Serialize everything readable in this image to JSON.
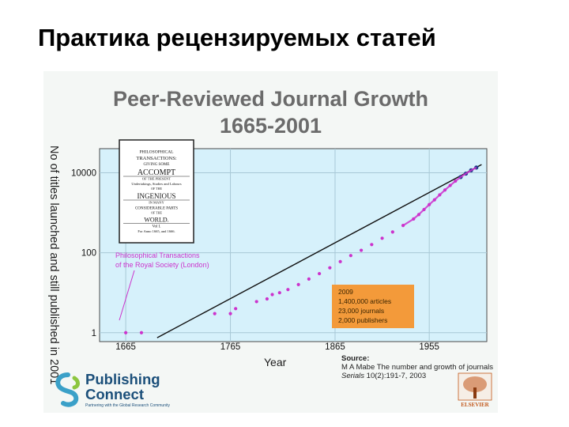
{
  "slide": {
    "title": "Практика рецензируемых статей"
  },
  "chart_data": {
    "type": "scatter",
    "title": "Peer-Reviewed Journal Growth",
    "subtitle": "1665-2001",
    "xlabel": "Year",
    "ylabel": "No of titles launched and still published in 2001",
    "yscale": "log",
    "xlim": [
      1640,
      2010
    ],
    "ylim": [
      0.6,
      40000
    ],
    "x_ticks": [
      {
        "value": 1665,
        "label": "1665"
      },
      {
        "value": 1765,
        "label": "1765"
      },
      {
        "value": 1865,
        "label": "1865"
      },
      {
        "value": 1955,
        "label": "1955"
      }
    ],
    "y_ticks": [
      {
        "value": 1,
        "label": "1"
      },
      {
        "value": 100,
        "label": "100"
      },
      {
        "value": 10000,
        "label": "10000"
      }
    ],
    "grid": true,
    "colors": {
      "plot_bg": "#d6f1fb",
      "grid": "#a8c8d6",
      "points": "#cc33cc",
      "trend": "#111111",
      "recent": "#1f3a8a"
    },
    "series": [
      {
        "points": [
          [
            1665,
            1
          ],
          [
            1680,
            1
          ],
          [
            1750,
            3
          ],
          [
            1765,
            3
          ],
          [
            1770,
            4
          ],
          [
            1790,
            6
          ],
          [
            1800,
            7
          ],
          [
            1805,
            9
          ],
          [
            1812,
            10
          ],
          [
            1820,
            12
          ],
          [
            1830,
            16
          ],
          [
            1840,
            22
          ],
          [
            1850,
            30
          ],
          [
            1860,
            42
          ],
          [
            1870,
            60
          ],
          [
            1880,
            85
          ],
          [
            1890,
            115
          ],
          [
            1900,
            160
          ],
          [
            1910,
            230
          ],
          [
            1920,
            330
          ],
          [
            1930,
            480
          ],
          [
            1940,
            700
          ],
          [
            1945,
            900
          ],
          [
            1950,
            1200
          ],
          [
            1955,
            1600
          ],
          [
            1960,
            2100
          ],
          [
            1965,
            2800
          ],
          [
            1970,
            3700
          ],
          [
            1975,
            4800
          ],
          [
            1980,
            6200
          ],
          [
            1985,
            7800
          ],
          [
            1990,
            9500
          ],
          [
            1995,
            11500
          ],
          [
            2000,
            13500
          ]
        ]
      }
    ],
    "trend_line": {
      "x": [
        1695,
        2005
      ],
      "y": [
        0.75,
        16000
      ]
    },
    "annotations": [
      {
        "text": "Philosophical Transactions of the Royal Society (London)"
      }
    ],
    "inset_title_lines": [
      "PHILOSOPHICAL",
      "TRANSACTIONS:",
      "GIVING SOME",
      "ACCOMPT",
      "OF THE PRESENT",
      "Undertakings, Studies and Labours",
      "OF THE",
      "INGENIOUS",
      "IN MANY",
      "CONSIDERABLE PARTS",
      "OF THE",
      "WORLD.",
      "Vol I.",
      "For Anno 1665, and 1666."
    ],
    "stats_box": {
      "bg": "#f39a3a",
      "lines": [
        "2009",
        "1,400,000 articles",
        "23,000 journals",
        "2,000 publishers"
      ]
    }
  },
  "source": {
    "label": "Source:",
    "line1": "M A Mabe The number and growth of journals",
    "journal": "Serials",
    "line2_rest": " 10(2):191-7, 2003"
  },
  "logos": {
    "publisher_line1": "Publishing",
    "publisher_line2": "Connect",
    "publisher_tagline": "Partnering with the Global Research Community",
    "elsevier": "ELSEVIER"
  }
}
